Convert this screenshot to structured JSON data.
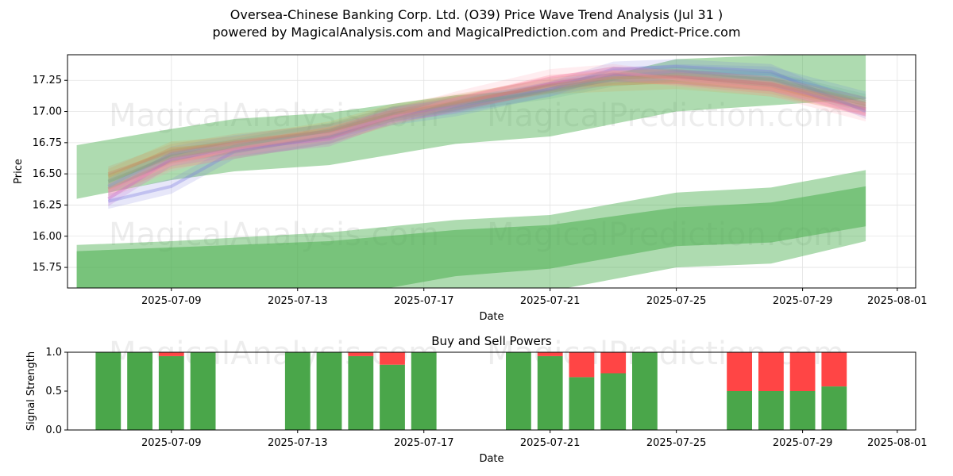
{
  "title": "Oversea-Chinese Banking Corp. Ltd. (O39) Price Wave Trend Analysis (Jul 31 )",
  "subtitle": "powered by MagicalAnalysis.com and MagicalPrediction.com and Predict-Price.com",
  "watermarks": [
    "MagicalAnalysis.com",
    "MagicalPrediction.com"
  ],
  "colors": {
    "band_green": "#4caf50",
    "buy_green": "#4aa64a",
    "sell_red": "#ff4545",
    "grid": "#e3e3e3"
  },
  "chart_data": [
    {
      "type": "area",
      "title": "",
      "xlabel": "Date",
      "ylabel": "Price",
      "x_ticks": [
        "2025-07-09",
        "2025-07-13",
        "2025-07-17",
        "2025-07-21",
        "2025-07-25",
        "2025-07-29",
        "2025-08-01"
      ],
      "y_ticks": [
        15.75,
        16.0,
        16.25,
        16.5,
        16.75,
        17.0,
        17.25
      ],
      "xlim": [
        "2025-07-05 17:00",
        "2025-08-01 14:00"
      ],
      "ylim": [
        15.585,
        17.455
      ],
      "grid": true,
      "bands": [
        {
          "x": [
            "2025-07-06",
            "2025-07-09",
            "2025-07-11",
            "2025-07-14",
            "2025-07-18",
            "2025-07-21",
            "2025-07-25",
            "2025-07-28",
            "2025-07-31"
          ],
          "upper": [
            16.73,
            16.86,
            16.94,
            16.99,
            17.13,
            17.18,
            17.42,
            17.45,
            17.46
          ],
          "lower": [
            16.3,
            16.45,
            16.52,
            16.57,
            16.74,
            16.8,
            17.0,
            17.05,
            17.1
          ]
        },
        {
          "x": [
            "2025-07-06",
            "2025-07-09",
            "2025-07-14",
            "2025-07-18",
            "2025-07-21",
            "2025-07-25",
            "2025-07-28",
            "2025-07-31"
          ],
          "upper": [
            15.93,
            15.96,
            16.03,
            16.13,
            16.17,
            16.35,
            16.39,
            16.53
          ],
          "lower": [
            15.0,
            15.1,
            15.3,
            15.48,
            15.56,
            15.75,
            15.78,
            15.96
          ]
        },
        {
          "x": [
            "2025-07-06",
            "2025-07-09",
            "2025-07-14",
            "2025-07-18",
            "2025-07-21",
            "2025-07-25",
            "2025-07-28",
            "2025-07-31"
          ],
          "upper": [
            15.88,
            15.91,
            15.96,
            16.05,
            16.09,
            16.23,
            16.27,
            16.4
          ],
          "lower": [
            15.2,
            15.3,
            15.5,
            15.68,
            15.74,
            15.92,
            15.95,
            16.08
          ]
        }
      ],
      "waves": [
        {
          "color": "#ff6666",
          "x": [
            "2025-07-07",
            "2025-07-09",
            "2025-07-11",
            "2025-07-14",
            "2025-07-16",
            "2025-07-18",
            "2025-07-21",
            "2025-07-23",
            "2025-07-25",
            "2025-07-28",
            "2025-07-31"
          ],
          "y": [
            16.38,
            16.6,
            16.68,
            16.8,
            16.95,
            17.06,
            17.22,
            17.3,
            17.27,
            17.2,
            17.02
          ]
        },
        {
          "color": "#6a8cd6",
          "x": [
            "2025-07-07",
            "2025-07-09",
            "2025-07-11",
            "2025-07-14",
            "2025-07-16",
            "2025-07-18",
            "2025-07-21",
            "2025-07-23",
            "2025-07-25",
            "2025-07-28",
            "2025-07-31"
          ],
          "y": [
            16.4,
            16.66,
            16.75,
            16.84,
            16.95,
            17.02,
            17.18,
            17.28,
            17.32,
            17.3,
            17.1
          ]
        },
        {
          "color": "#d9a14a",
          "x": [
            "2025-07-07",
            "2025-07-09",
            "2025-07-11",
            "2025-07-14",
            "2025-07-16",
            "2025-07-18",
            "2025-07-21",
            "2025-07-23",
            "2025-07-25",
            "2025-07-28",
            "2025-07-31"
          ],
          "y": [
            16.48,
            16.7,
            16.74,
            16.86,
            17.0,
            17.08,
            17.2,
            17.22,
            17.24,
            17.18,
            17.04
          ]
        },
        {
          "color": "#cc55cc",
          "x": [
            "2025-07-07",
            "2025-07-09",
            "2025-07-11",
            "2025-07-14",
            "2025-07-16",
            "2025-07-18",
            "2025-07-21",
            "2025-07-23",
            "2025-07-25",
            "2025-07-28",
            "2025-07-31"
          ],
          "y": [
            16.3,
            16.62,
            16.7,
            16.78,
            16.97,
            17.05,
            17.22,
            17.3,
            17.28,
            17.22,
            17.02
          ]
        },
        {
          "color": "#7a7ae0",
          "x": [
            "2025-07-07",
            "2025-07-09",
            "2025-07-11",
            "2025-07-14",
            "2025-07-16",
            "2025-07-18",
            "2025-07-21",
            "2025-07-23",
            "2025-07-25",
            "2025-07-28",
            "2025-07-31"
          ],
          "y": [
            16.28,
            16.4,
            16.68,
            16.8,
            16.98,
            17.04,
            17.18,
            17.34,
            17.36,
            17.32,
            17.0
          ]
        },
        {
          "color": "#66aa88",
          "x": [
            "2025-07-07",
            "2025-07-09",
            "2025-07-11",
            "2025-07-14",
            "2025-07-16",
            "2025-07-18",
            "2025-07-21",
            "2025-07-23",
            "2025-07-25",
            "2025-07-28",
            "2025-07-31"
          ],
          "y": [
            16.44,
            16.64,
            16.72,
            16.85,
            16.98,
            17.06,
            17.16,
            17.26,
            17.3,
            17.26,
            17.08
          ]
        },
        {
          "color": "#ff99aa",
          "x": [
            "2025-07-07",
            "2025-07-09",
            "2025-07-11",
            "2025-07-14",
            "2025-07-16",
            "2025-07-18",
            "2025-07-21",
            "2025-07-23",
            "2025-07-25",
            "2025-07-28",
            "2025-07-31"
          ],
          "y": [
            16.36,
            16.58,
            16.7,
            16.82,
            16.96,
            17.1,
            17.28,
            17.32,
            17.26,
            17.18,
            16.98
          ]
        },
        {
          "color": "#cc8866",
          "x": [
            "2025-07-07",
            "2025-07-09",
            "2025-07-11",
            "2025-07-14",
            "2025-07-16",
            "2025-07-18",
            "2025-07-21",
            "2025-07-23",
            "2025-07-25",
            "2025-07-28",
            "2025-07-31"
          ],
          "y": [
            16.5,
            16.68,
            16.76,
            16.84,
            16.98,
            17.07,
            17.21,
            17.27,
            17.28,
            17.22,
            17.06
          ]
        }
      ]
    },
    {
      "type": "bar",
      "title": "Buy and Sell Powers",
      "xlabel": "Date",
      "ylabel": "Signal Strength",
      "y_ticks": [
        "0.0",
        "0.5",
        "1.0"
      ],
      "x_ticks": [
        "2025-07-09",
        "2025-07-13",
        "2025-07-17",
        "2025-07-21",
        "2025-07-25",
        "2025-07-29",
        "2025-08-01"
      ],
      "xlim": [
        "2025-07-05 17:00",
        "2025-08-01 14:00"
      ],
      "ylim": [
        0,
        1
      ],
      "categories": [
        "2025-07-07",
        "2025-07-08",
        "2025-07-09",
        "2025-07-10",
        "2025-07-13",
        "2025-07-14",
        "2025-07-15",
        "2025-07-16",
        "2025-07-17",
        "2025-07-20",
        "2025-07-21",
        "2025-07-22",
        "2025-07-23",
        "2025-07-24",
        "2025-07-27",
        "2025-07-28",
        "2025-07-29",
        "2025-07-30"
      ],
      "series": [
        {
          "color": "green",
          "values": [
            1.0,
            1.0,
            0.95,
            1.0,
            1.0,
            1.0,
            0.95,
            0.84,
            1.0,
            1.0,
            0.95,
            0.68,
            0.73,
            1.0,
            0.5,
            0.5,
            0.5,
            0.56
          ]
        },
        {
          "color": "red",
          "values": [
            0.0,
            0.0,
            0.05,
            0.0,
            0.0,
            0.0,
            0.05,
            0.16,
            0.0,
            0.0,
            0.05,
            0.32,
            0.27,
            0.0,
            0.5,
            0.5,
            0.5,
            0.44
          ]
        }
      ]
    }
  ]
}
